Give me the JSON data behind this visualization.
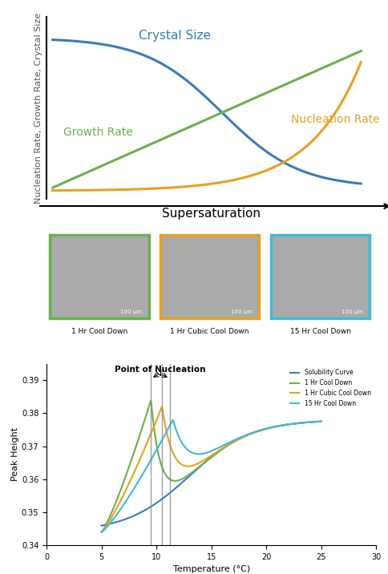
{
  "top_chart": {
    "crystal_size_color": "#3a7bbf",
    "growth_rate_color": "#6ab04c",
    "nucleation_rate_color": "#e8a020",
    "ylabel": "Nucleation Rate, Growth Rate, Crystal Size",
    "xlabel": "Supersaturation",
    "labels": {
      "crystal_size": "Crystal Size",
      "growth_rate": "Growth Rate",
      "nucleation_rate": "Nucleation Rate"
    },
    "label_colors": {
      "crystal_size": "#3a7bbf",
      "growth_rate": "#6ab04c",
      "nucleation_rate": "#e8a020"
    }
  },
  "images": {
    "labels": [
      "1 Hr Cool Down",
      "1 Hr Cubic Cool Down",
      "15 Hr Cool Down"
    ],
    "border_colors": [
      "#6ab04c",
      "#e8a020",
      "#3dbbd7"
    ]
  },
  "bottom_chart": {
    "title": "Point of Nucleation",
    "xlabel": "Temperature (°C)",
    "ylabel": "Peak Height",
    "xlim": [
      0,
      30
    ],
    "ylim": [
      0.34,
      0.395
    ],
    "yticks": [
      0.34,
      0.35,
      0.36,
      0.37,
      0.38,
      0.39
    ],
    "xticks": [
      0,
      5,
      10,
      15,
      20,
      25,
      30
    ],
    "legend": {
      "labels": [
        "Solubility Curve",
        "1 Hr Cool Down",
        "1 Hr Cubic Cool Down",
        "15 Hr Cool Down"
      ],
      "colors": [
        "#3a7bbf",
        "#6ab04c",
        "#e8a020",
        "#3dbbd7"
      ]
    },
    "vlines": [
      9.5,
      10.5,
      11.2
    ],
    "vline_color": "#888888"
  }
}
